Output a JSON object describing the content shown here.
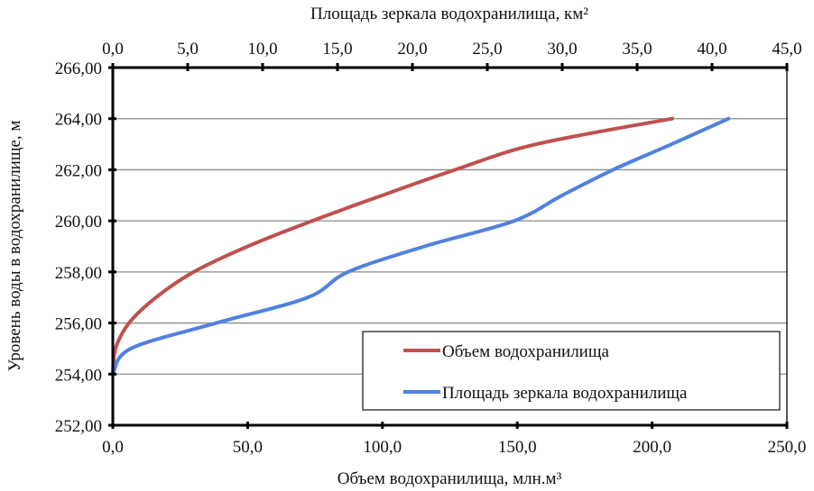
{
  "chart_data": {
    "type": "line",
    "title": "",
    "top_xlabel": "Площадь зеркала водохранилища, км²",
    "xlabel": "Объем водохранилища, млн.м³",
    "ylabel": "Уровень воды в водохранилище, м",
    "xlim": [
      0,
      250
    ],
    "top_xlim": [
      0,
      45
    ],
    "ylim": [
      252,
      266
    ],
    "x_ticks": [
      "0,0",
      "50,0",
      "100,0",
      "150,0",
      "200,0",
      "250,0"
    ],
    "top_x_ticks": [
      "0,0",
      "5,0",
      "10,0",
      "15,0",
      "20,0",
      "25,0",
      "30,0",
      "35,0",
      "40,0",
      "45,0"
    ],
    "y_ticks": [
      "252,00",
      "254,00",
      "256,00",
      "258,00",
      "260,00",
      "262,00",
      "264,00",
      "266,00"
    ],
    "grid": "horizontal",
    "legend_position": "lower right (inside plot)",
    "series": [
      {
        "name": "Объем водохранилища",
        "axis": "bottom",
        "color": "#c0504d",
        "x": [
          0,
          1,
          6,
          16,
          30,
          50,
          74,
          100,
          127,
          157,
          207.5
        ],
        "y": [
          254,
          255,
          256,
          257,
          258,
          259,
          260,
          261,
          262,
          263,
          264
        ]
      },
      {
        "name": "Площадь зеркала водохранилища",
        "axis": "top",
        "color": "#4f81e0",
        "x": [
          0,
          1.2,
          6.9,
          13.0,
          15.7,
          20.8,
          26.8,
          30.0,
          33.4,
          37.3,
          41.1
        ],
        "y": [
          254,
          255,
          256,
          257,
          258,
          259,
          260,
          261,
          262,
          263,
          264
        ]
      }
    ]
  },
  "legend": {
    "items": [
      {
        "label": "Объем водохранилища",
        "color": "#c0504d"
      },
      {
        "label": "Площадь зеркала водохранилища",
        "color": "#4f81e0"
      }
    ]
  }
}
